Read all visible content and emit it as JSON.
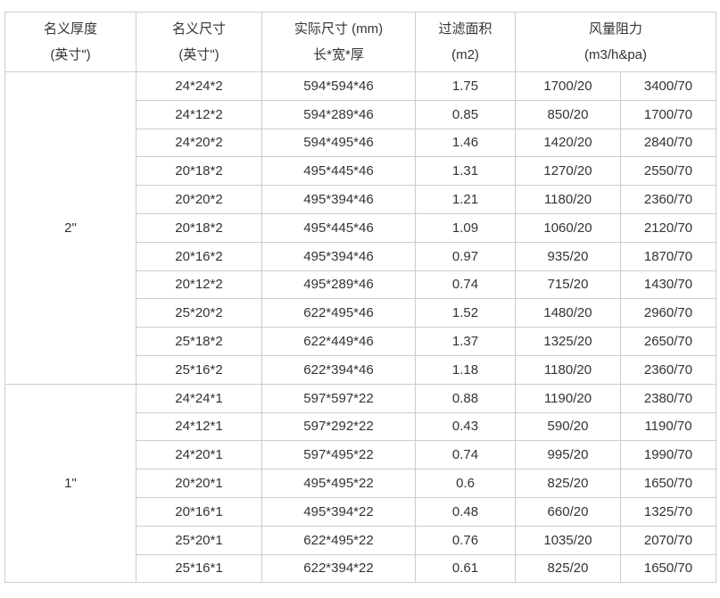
{
  "appearance": {
    "background_color": "#ffffff",
    "border_color": "#cccccc",
    "text_color": "#333333"
  },
  "chart_data": {
    "type": "table",
    "title": "",
    "header": {
      "thickness": [
        "名义厚度",
        "(英寸\")"
      ],
      "size": [
        "名义尺寸",
        "(英寸\")"
      ],
      "actual": [
        "实际尺寸 (mm)",
        "长*宽*厚"
      ],
      "area": [
        "过滤面积",
        "(m2)"
      ],
      "airflow": [
        "风量阻力",
        "(m3/h&pa)"
      ]
    },
    "column_semantics": [
      "nominal-thickness-inch",
      "nominal-size-inch",
      "actual-size-mm-LxWxT",
      "filter-area-m2",
      "airflow-at-20pa",
      "airflow-at-70pa"
    ],
    "groups": [
      {
        "thickness": "2\"",
        "rows": [
          [
            "24*24*2",
            "594*594*46",
            "1.75",
            "1700/20",
            "3400/70"
          ],
          [
            "24*12*2",
            "594*289*46",
            "0.85",
            "850/20",
            "1700/70"
          ],
          [
            "24*20*2",
            "594*495*46",
            "1.46",
            "1420/20",
            "2840/70"
          ],
          [
            "20*18*2",
            "495*445*46",
            "1.31",
            "1270/20",
            "2550/70"
          ],
          [
            "20*20*2",
            "495*394*46",
            "1.21",
            "1180/20",
            "2360/70"
          ],
          [
            "20*18*2",
            "495*445*46",
            "1.09",
            "1060/20",
            "2120/70"
          ],
          [
            "20*16*2",
            "495*394*46",
            "0.97",
            "935/20",
            "1870/70"
          ],
          [
            "20*12*2",
            "495*289*46",
            "0.74",
            "715/20",
            "1430/70"
          ],
          [
            "25*20*2",
            "622*495*46",
            "1.52",
            "1480/20",
            "2960/70"
          ],
          [
            "25*18*2",
            "622*449*46",
            "1.37",
            "1325/20",
            "2650/70"
          ],
          [
            "25*16*2",
            "622*394*46",
            "1.18",
            "1180/20",
            "2360/70"
          ]
        ]
      },
      {
        "thickness": "1\"",
        "rows": [
          [
            "24*24*1",
            "597*597*22",
            "0.88",
            "1190/20",
            "2380/70"
          ],
          [
            "24*12*1",
            "597*292*22",
            "0.43",
            "590/20",
            "1190/70"
          ],
          [
            "24*20*1",
            "597*495*22",
            "0.74",
            "995/20",
            "1990/70"
          ],
          [
            "20*20*1",
            "495*495*22",
            "0.6",
            "825/20",
            "1650/70"
          ],
          [
            "20*16*1",
            "495*394*22",
            "0.48",
            "660/20",
            "1325/70"
          ],
          [
            "25*20*1",
            "622*495*22",
            "0.76",
            "1035/20",
            "2070/70"
          ],
          [
            "25*16*1",
            "622*394*22",
            "0.61",
            "825/20",
            "1650/70"
          ]
        ]
      }
    ]
  }
}
